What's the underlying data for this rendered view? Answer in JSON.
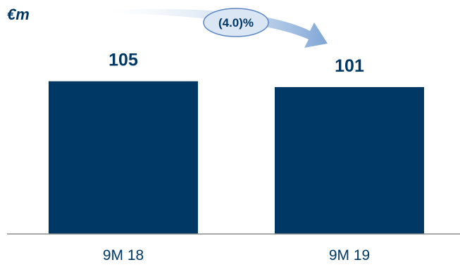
{
  "colors": {
    "bar": "#003865",
    "text": "#003865",
    "axis": "#8c8c8c",
    "arrow_start": "#ffffff",
    "arrow_end": "#7fa6d6",
    "bubble_fill": "#dbe6f5",
    "bubble_stroke": "#5b86c4"
  },
  "chart_data": {
    "type": "bar",
    "unit": "€m",
    "categories": [
      "9M 18",
      "9M 19"
    ],
    "values": [
      105,
      101
    ],
    "value_labels": [
      "105",
      "101"
    ],
    "change_label": "(4.0)%",
    "ylim": [
      0,
      120
    ],
    "grid": false,
    "legend": "none"
  }
}
